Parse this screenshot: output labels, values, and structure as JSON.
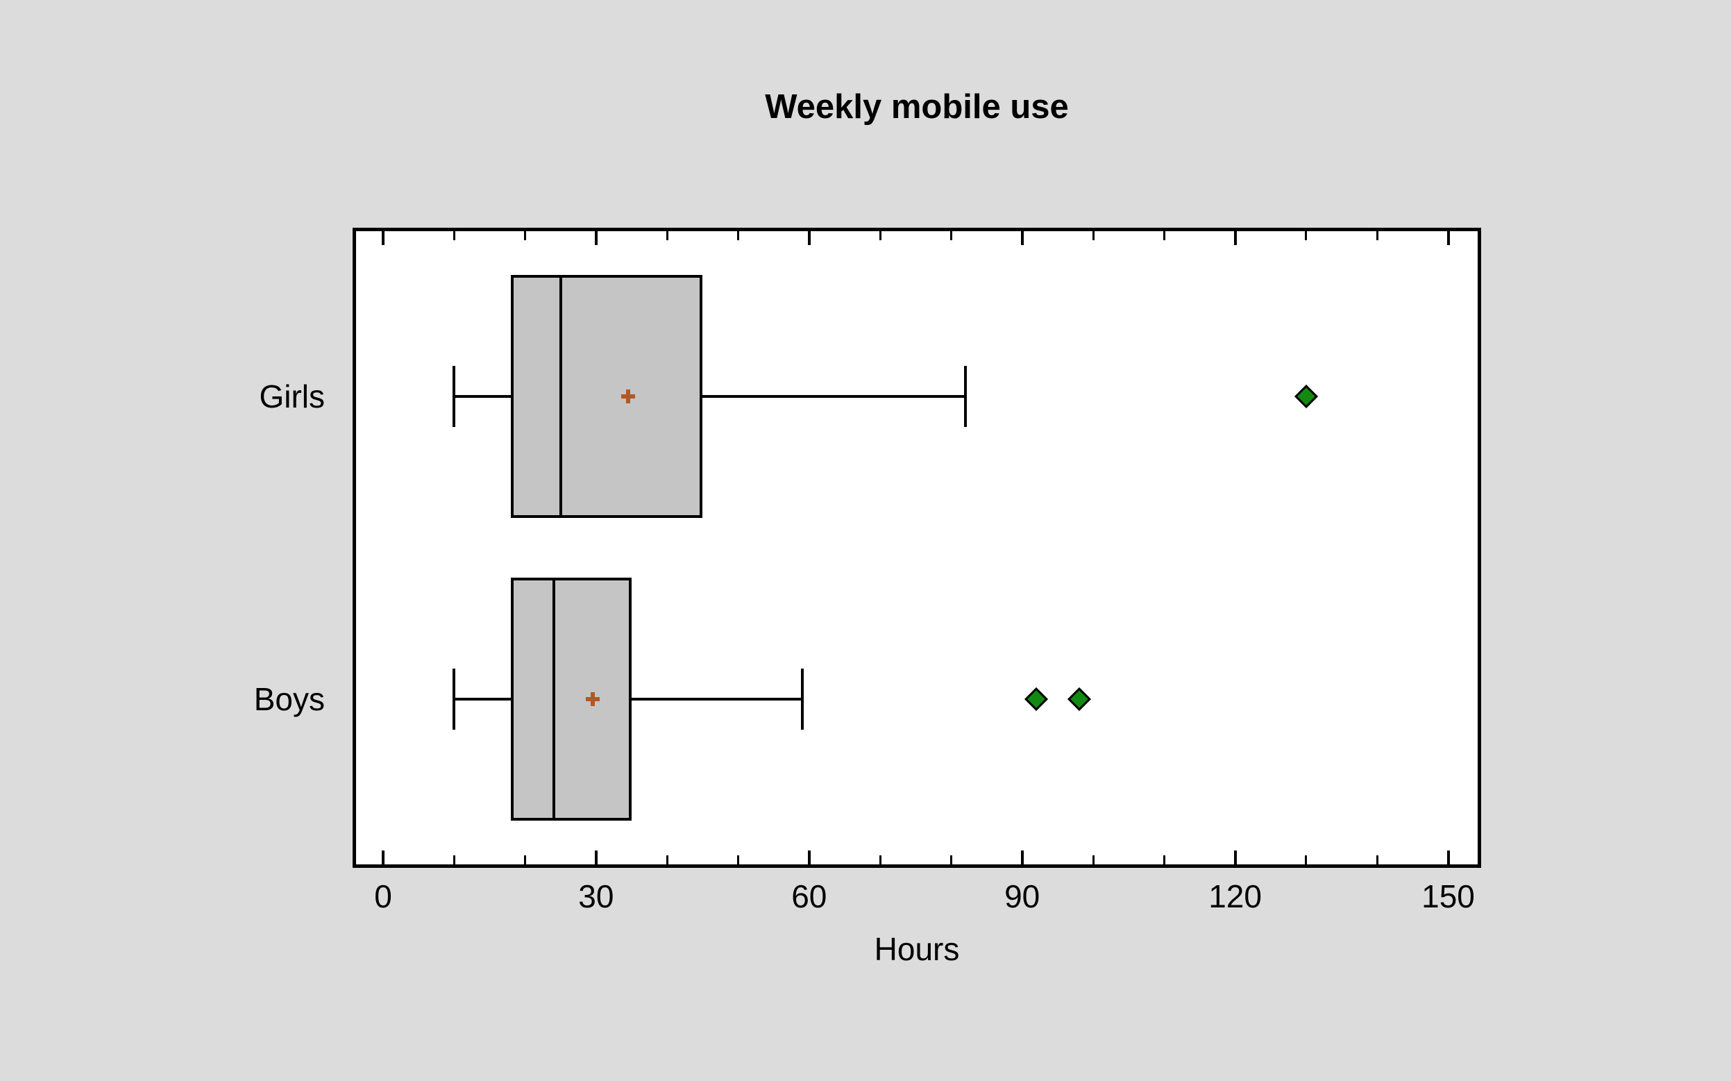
{
  "chart_data": {
    "type": "boxplot",
    "orientation": "horizontal",
    "title": "Weekly mobile use",
    "xlabel": "Hours",
    "categories": [
      "Girls",
      "Boys"
    ],
    "xlim": [
      -4,
      155
    ],
    "xticks_major": [
      0,
      30,
      60,
      90,
      120,
      150
    ],
    "xtick_minor_step": 10,
    "grid": false,
    "legend": "none",
    "series": [
      {
        "name": "Girls",
        "whisker_low": 10,
        "q1": 18,
        "median": 25,
        "q3": 45,
        "whisker_high": 82,
        "mean": 34.5,
        "outliers": [
          130
        ]
      },
      {
        "name": "Boys",
        "whisker_low": 10,
        "q1": 18,
        "median": 24,
        "q3": 35,
        "whisker_high": 59,
        "mean": 29.5,
        "outliers": [
          92,
          98
        ]
      }
    ],
    "markers": {
      "mean": "plus",
      "outlier": "diamond"
    },
    "colors": {
      "background": "#dcdcdc",
      "plot_background": "#ffffff",
      "box_fill": "#c5c5c5",
      "line": "#000000",
      "mean_marker": "#b05a23",
      "outlier_fill": "#128a12",
      "text": "#000000"
    }
  }
}
